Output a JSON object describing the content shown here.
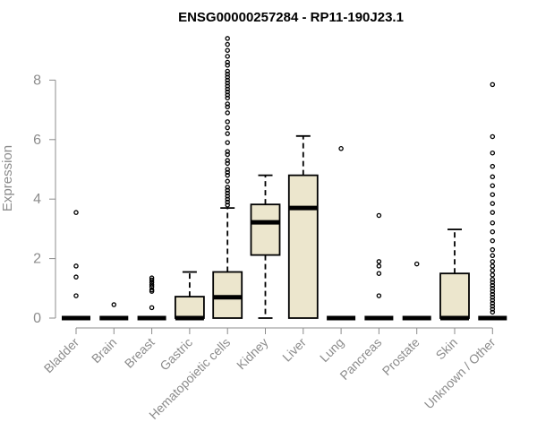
{
  "chart_data": {
    "type": "box",
    "title": "ENSG00000257284 - RP11-190J23.1",
    "ylabel": "Expression",
    "xlabel": "",
    "ylim": [
      0,
      9.5
    ],
    "yticks": [
      0,
      2,
      4,
      6,
      8
    ],
    "box_color": "#ece6cd",
    "categories": [
      "Bladder",
      "Brain",
      "Breast",
      "Gastric",
      "Hematopoietic cells",
      "Kidney",
      "Liver",
      "Lung",
      "Pancreas",
      "Prostate",
      "Skin",
      "Unknown / Other"
    ],
    "boxes": [
      {
        "q1": 0,
        "median": 0,
        "q3": 0,
        "whisker_low": 0,
        "whisker_high": 0,
        "outliers": [
          3.55,
          1.75,
          1.38,
          0.75
        ]
      },
      {
        "q1": 0,
        "median": 0,
        "q3": 0,
        "whisker_low": 0,
        "whisker_high": 0,
        "outliers": [
          0.45
        ]
      },
      {
        "q1": 0,
        "median": 0,
        "q3": 0,
        "whisker_low": 0,
        "whisker_high": 0,
        "outliers": [
          1.35,
          1.28,
          1.2,
          1.12,
          1.05,
          0.95,
          0.9,
          0.35
        ]
      },
      {
        "q1": 0,
        "median": 0,
        "q3": 0.72,
        "whisker_low": 0,
        "whisker_high": 1.55,
        "outliers": []
      },
      {
        "q1": 0,
        "median": 0.7,
        "q3": 1.55,
        "whisker_low": 0,
        "whisker_high": 3.7,
        "outliers": [
          9.4,
          9.2,
          9.0,
          8.8,
          8.6,
          8.5,
          8.3,
          8.2,
          8.1,
          8.0,
          7.9,
          7.8,
          7.7,
          7.6,
          7.5,
          7.4,
          7.2,
          7.1,
          6.9,
          6.6,
          6.4,
          6.2,
          5.9,
          5.6,
          5.5,
          5.3,
          5.2,
          5.0,
          4.9,
          4.8,
          4.6,
          4.4,
          4.3,
          4.2,
          4.1,
          4.0,
          3.9,
          3.8
        ]
      },
      {
        "q1": 2.12,
        "median": 3.22,
        "q3": 3.82,
        "whisker_low": 0,
        "whisker_high": 4.8,
        "outliers": []
      },
      {
        "q1": 0,
        "median": 3.7,
        "q3": 4.8,
        "whisker_low": 0,
        "whisker_high": 6.12,
        "outliers": []
      },
      {
        "q1": 0,
        "median": 0,
        "q3": 0,
        "whisker_low": 0,
        "whisker_high": 0,
        "outliers": [
          5.7
        ]
      },
      {
        "q1": 0,
        "median": 0,
        "q3": 0,
        "whisker_low": 0,
        "whisker_high": 0,
        "outliers": [
          3.45,
          1.9,
          1.75,
          1.5,
          0.75
        ]
      },
      {
        "q1": 0,
        "median": 0,
        "q3": 0,
        "whisker_low": 0,
        "whisker_high": 0,
        "outliers": [
          1.82
        ]
      },
      {
        "q1": 0,
        "median": 0,
        "q3": 1.5,
        "whisker_low": 0,
        "whisker_high": 2.98,
        "outliers": []
      },
      {
        "q1": 0,
        "median": 0,
        "q3": 0,
        "whisker_low": 0,
        "whisker_high": 0,
        "outliers": [
          7.85,
          6.1,
          5.55,
          5.1,
          4.75,
          4.45,
          4.15,
          3.85,
          3.55,
          3.2,
          2.9,
          2.6,
          2.3,
          2.1,
          1.9,
          1.75,
          1.6,
          1.45,
          1.3,
          1.2,
          1.1,
          1.0,
          0.9,
          0.8,
          0.7,
          0.6,
          0.5,
          0.4,
          0.3,
          0.2
        ]
      }
    ]
  }
}
